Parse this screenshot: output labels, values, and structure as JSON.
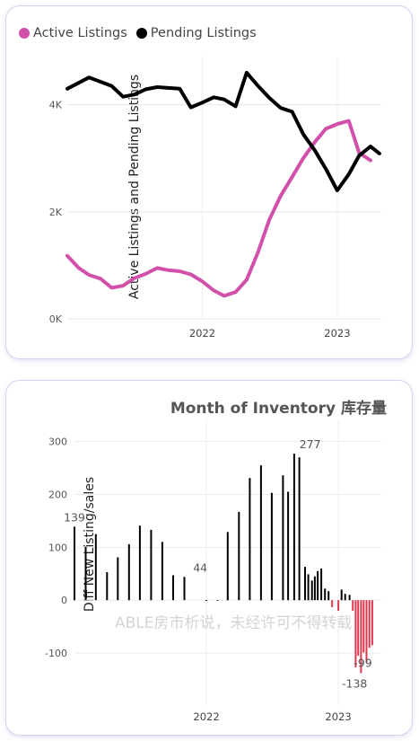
{
  "chart_data": [
    {
      "type": "line",
      "title": "",
      "xlabel": "",
      "ylabel": "Active Listings and Pending Listings",
      "ylim": [
        0,
        4900
      ],
      "xlim": [
        "2021-01-01",
        "2023-04-30"
      ],
      "y_ticks": [
        "0K",
        "2K",
        "4K"
      ],
      "x_ticks": [
        "2022",
        "2023"
      ],
      "grid": true,
      "legend_position": "top-left",
      "series": [
        {
          "name": "Active Listings",
          "color": "#d150a9",
          "points": [
            {
              "x": "2021-01-01",
              "y": 1180
            },
            {
              "x": "2021-02-01",
              "y": 950
            },
            {
              "x": "2021-03-01",
              "y": 820
            },
            {
              "x": "2021-04-01",
              "y": 750
            },
            {
              "x": "2021-05-01",
              "y": 580
            },
            {
              "x": "2021-06-01",
              "y": 620
            },
            {
              "x": "2021-07-01",
              "y": 760
            },
            {
              "x": "2021-08-01",
              "y": 840
            },
            {
              "x": "2021-09-01",
              "y": 950
            },
            {
              "x": "2021-10-01",
              "y": 910
            },
            {
              "x": "2021-11-01",
              "y": 890
            },
            {
              "x": "2021-12-01",
              "y": 830
            },
            {
              "x": "2022-01-01",
              "y": 700
            },
            {
              "x": "2022-02-01",
              "y": 530
            },
            {
              "x": "2022-03-01",
              "y": 430
            },
            {
              "x": "2022-04-01",
              "y": 500
            },
            {
              "x": "2022-05-01",
              "y": 730
            },
            {
              "x": "2022-06-01",
              "y": 1250
            },
            {
              "x": "2022-07-01",
              "y": 1850
            },
            {
              "x": "2022-08-01",
              "y": 2300
            },
            {
              "x": "2022-09-01",
              "y": 2650
            },
            {
              "x": "2022-10-01",
              "y": 3000
            },
            {
              "x": "2022-11-01",
              "y": 3300
            },
            {
              "x": "2022-12-01",
              "y": 3550
            },
            {
              "x": "2023-01-01",
              "y": 3640
            },
            {
              "x": "2023-02-01",
              "y": 3700
            },
            {
              "x": "2023-03-01",
              "y": 3100
            },
            {
              "x": "2023-04-01",
              "y": 2960
            }
          ]
        },
        {
          "name": "Pending Listings",
          "color": "#000000",
          "points": [
            {
              "x": "2021-01-01",
              "y": 4300
            },
            {
              "x": "2021-03-01",
              "y": 4510
            },
            {
              "x": "2021-05-01",
              "y": 4350
            },
            {
              "x": "2021-06-01",
              "y": 4150
            },
            {
              "x": "2021-07-01",
              "y": 4190
            },
            {
              "x": "2021-08-01",
              "y": 4290
            },
            {
              "x": "2021-09-01",
              "y": 4330
            },
            {
              "x": "2021-11-01",
              "y": 4300
            },
            {
              "x": "2021-12-01",
              "y": 3950
            },
            {
              "x": "2022-01-01",
              "y": 4040
            },
            {
              "x": "2022-02-01",
              "y": 4140
            },
            {
              "x": "2022-03-01",
              "y": 4100
            },
            {
              "x": "2022-04-01",
              "y": 3970
            },
            {
              "x": "2022-05-01",
              "y": 4600
            },
            {
              "x": "2022-06-01",
              "y": 4350
            },
            {
              "x": "2022-07-01",
              "y": 4130
            },
            {
              "x": "2022-08-01",
              "y": 3940
            },
            {
              "x": "2022-09-01",
              "y": 3870
            },
            {
              "x": "2022-10-01",
              "y": 3450
            },
            {
              "x": "2022-11-01",
              "y": 3150
            },
            {
              "x": "2022-12-01",
              "y": 2800
            },
            {
              "x": "2023-01-01",
              "y": 2400
            },
            {
              "x": "2023-02-01",
              "y": 2700
            },
            {
              "x": "2023-03-01",
              "y": 3050
            },
            {
              "x": "2023-04-01",
              "y": 3220
            },
            {
              "x": "2023-04-25",
              "y": 3090
            }
          ]
        }
      ]
    },
    {
      "type": "bar",
      "title": "Month of Inventory 库存量",
      "xlabel": "",
      "ylabel": "Diff New Listing/sales",
      "ylim": [
        -200,
        340
      ],
      "xlim": [
        "2021-01-01",
        "2023-04-30"
      ],
      "y_ticks": [
        "-100",
        "0",
        "100",
        "200",
        "300"
      ],
      "x_ticks": [
        "2022",
        "2023"
      ],
      "grid": true,
      "positive_color": "#000000",
      "negative_color": "#e0394f",
      "data_labels": [
        {
          "x": "2021-01-01",
          "value": "139"
        },
        {
          "x": "2021-12-15",
          "value": "44"
        },
        {
          "x": "2022-10-15",
          "value": "277"
        },
        {
          "x": "2023-02-15",
          "value": "-138"
        },
        {
          "x": "2023-03-10",
          "value": "-99"
        }
      ],
      "bars": [
        {
          "x": "2021-01-01",
          "value": 139
        },
        {
          "x": "2021-02-01",
          "value": 101
        },
        {
          "x": "2021-03-01",
          "value": 125
        },
        {
          "x": "2021-04-01",
          "value": 53
        },
        {
          "x": "2021-05-01",
          "value": 81
        },
        {
          "x": "2021-06-01",
          "value": 106
        },
        {
          "x": "2021-07-01",
          "value": 141
        },
        {
          "x": "2021-08-01",
          "value": 133
        },
        {
          "x": "2021-09-01",
          "value": 110
        },
        {
          "x": "2021-10-01",
          "value": 47
        },
        {
          "x": "2021-11-01",
          "value": 44
        },
        {
          "x": "2022-01-01",
          "value": 0
        },
        {
          "x": "2022-02-01",
          "value": 0
        },
        {
          "x": "2022-03-01",
          "value": 129
        },
        {
          "x": "2022-04-01",
          "value": 167
        },
        {
          "x": "2022-05-01",
          "value": 231
        },
        {
          "x": "2022-06-01",
          "value": 255
        },
        {
          "x": "2022-07-01",
          "value": 203
        },
        {
          "x": "2022-08-01",
          "value": 236
        },
        {
          "x": "2022-08-15",
          "value": 205
        },
        {
          "x": "2022-09-01",
          "value": 277
        },
        {
          "x": "2022-09-15",
          "value": 270
        },
        {
          "x": "2022-10-01",
          "value": 63
        },
        {
          "x": "2022-10-10",
          "value": 49
        },
        {
          "x": "2022-10-20",
          "value": 37
        },
        {
          "x": "2022-10-28",
          "value": 45
        },
        {
          "x": "2022-11-05",
          "value": 55
        },
        {
          "x": "2022-11-15",
          "value": 60
        },
        {
          "x": "2022-11-25",
          "value": 22
        },
        {
          "x": "2022-12-05",
          "value": 17
        },
        {
          "x": "2022-12-15",
          "value": -13
        },
        {
          "x": "2023-01-01",
          "value": -20
        },
        {
          "x": "2023-01-10",
          "value": 20
        },
        {
          "x": "2023-01-20",
          "value": 12
        },
        {
          "x": "2023-02-01",
          "value": 10
        },
        {
          "x": "2023-02-10",
          "value": -20
        },
        {
          "x": "2023-02-18",
          "value": -127
        },
        {
          "x": "2023-02-25",
          "value": -105
        },
        {
          "x": "2023-03-05",
          "value": -138
        },
        {
          "x": "2023-03-12",
          "value": -99
        },
        {
          "x": "2023-03-20",
          "value": -118
        },
        {
          "x": "2023-03-28",
          "value": -90
        },
        {
          "x": "2023-04-05",
          "value": -85
        }
      ]
    }
  ],
  "watermark": "ABLE房市析说，未经许可不得转载"
}
